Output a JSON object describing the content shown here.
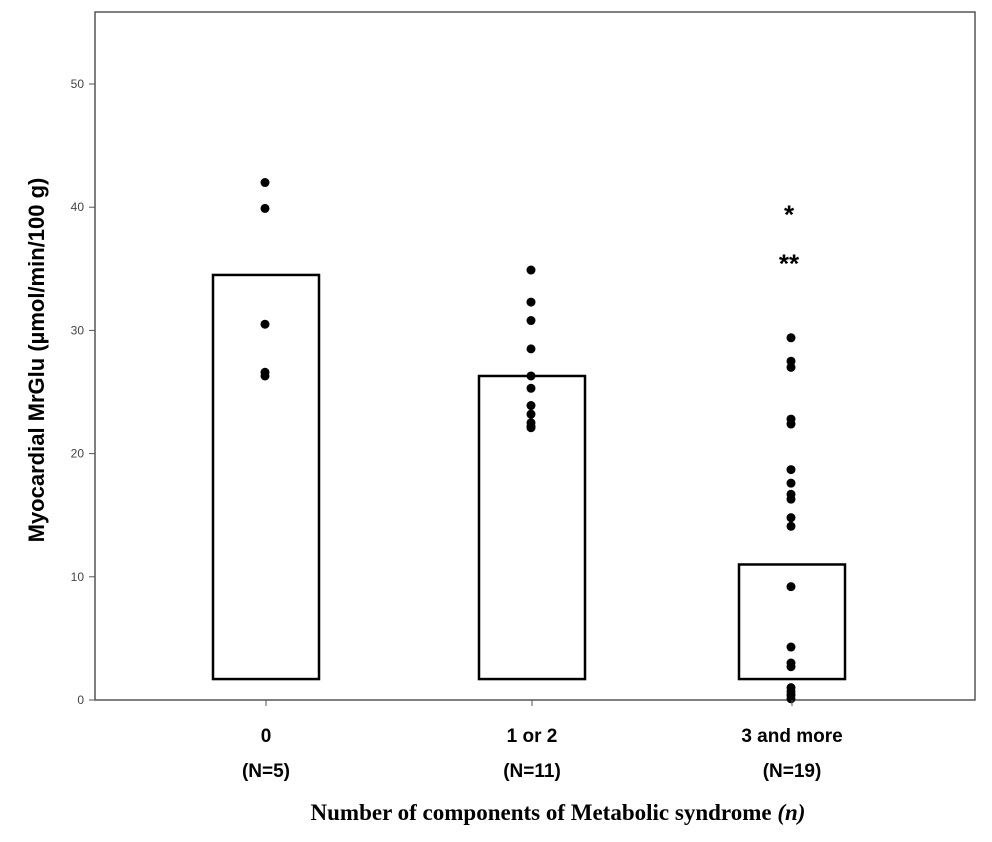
{
  "chart_data": {
    "type": "bar",
    "title": "",
    "xlabel": "Number of components of Metabolic syndrome",
    "xlabel_italic_suffix": "(n)",
    "ylabel": "Myocardial MrGlu (µmol/min/100 g)",
    "ylim": [
      0,
      55
    ],
    "yticks": [
      0,
      10,
      20,
      30,
      40,
      50
    ],
    "grid": false,
    "bar_baseline": 1.7,
    "categories": [
      "0",
      "1 or 2",
      "3 and more"
    ],
    "category_counts": [
      "(N=5)",
      "(N=11)",
      "(N=19)"
    ],
    "values": [
      34.5,
      26.3,
      11.0
    ],
    "points": [
      [
        42.0,
        39.9,
        30.5,
        26.6,
        26.3
      ],
      [
        34.9,
        32.3,
        30.8,
        28.5,
        26.3,
        25.3,
        23.9,
        23.2,
        22.5,
        22.2,
        22.1
      ],
      [
        29.4,
        27.5,
        27.0,
        22.8,
        22.4,
        18.7,
        17.6,
        16.7,
        16.3,
        14.8,
        14.1,
        9.2,
        4.3,
        3.0,
        2.7,
        1.0,
        0.7,
        0.4,
        0.1
      ]
    ],
    "annotations": [
      {
        "category": "3 and more",
        "text": "*",
        "y": 39.5
      },
      {
        "category": "3 and more",
        "text": "**",
        "y": 35.5
      }
    ]
  }
}
